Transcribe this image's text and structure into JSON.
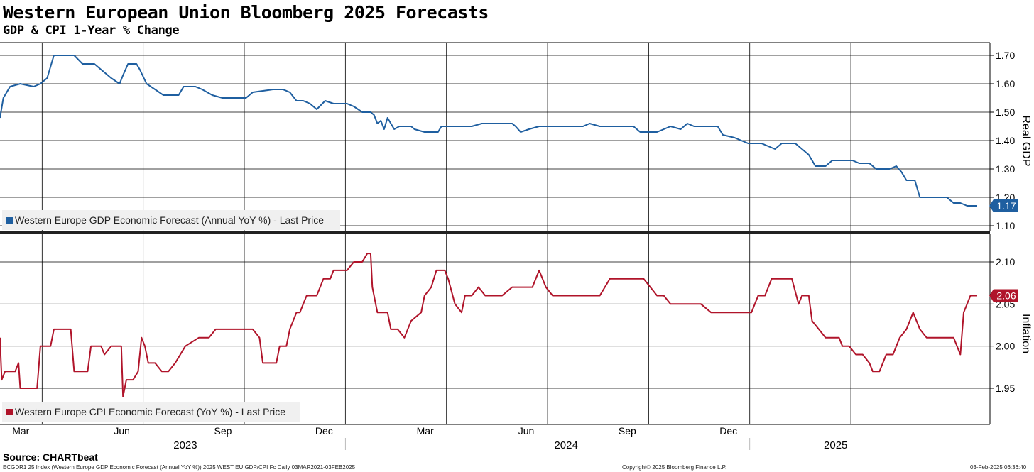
{
  "title": "Western European Union Bloomberg 2025 Forecasts",
  "subtitle": "GDP & CPI 1-Year % Change",
  "source": "Source: CHARTbeat",
  "footer": {
    "left": "ECGDR1 25 Index (Western Europe GDP Economic Forecast (Annual YoY %)) 2025 WEST EU GDP/CPI Fc  Daily 03MAR2021-03FEB2025",
    "center": "Copyright© 2025 Bloomberg Finance L.P.",
    "right": "03-Feb-2025 06:36:40"
  },
  "colors": {
    "gdp": "#1f5fa0",
    "cpi": "#b0142a",
    "grid": "#000000",
    "legend_bg": "#f0f0f0"
  },
  "chart_data": [
    {
      "type": "line",
      "ylabel": "Real GDP",
      "yticks": [
        "1.10",
        "1.20",
        "1.30",
        "1.40",
        "1.50",
        "1.60",
        "1.70"
      ],
      "ylim": [
        1.09,
        1.72
      ],
      "last_value": "1.17",
      "legend": "Western Europe GDP Economic Forecast (Annual YoY %) - Last Price",
      "series": [
        {
          "name": "Western Europe GDP Economic Forecast (Annual YoY %) - Last Price",
          "points": [
            [
              0,
              1.48
            ],
            [
              0.1,
              1.55
            ],
            [
              0.3,
              1.59
            ],
            [
              0.6,
              1.6
            ],
            [
              1.0,
              1.59
            ],
            [
              1.2,
              1.6
            ],
            [
              1.4,
              1.62
            ],
            [
              1.6,
              1.7
            ],
            [
              1.9,
              1.7
            ],
            [
              2.2,
              1.7
            ],
            [
              2.45,
              1.67
            ],
            [
              2.8,
              1.67
            ],
            [
              3.0,
              1.65
            ],
            [
              3.3,
              1.62
            ],
            [
              3.55,
              1.6
            ],
            [
              3.65,
              1.63
            ],
            [
              3.8,
              1.67
            ],
            [
              4.05,
              1.67
            ],
            [
              4.15,
              1.65
            ],
            [
              4.35,
              1.6
            ],
            [
              4.6,
              1.58
            ],
            [
              4.85,
              1.56
            ],
            [
              5.3,
              1.56
            ],
            [
              5.45,
              1.59
            ],
            [
              5.8,
              1.59
            ],
            [
              6.0,
              1.58
            ],
            [
              6.3,
              1.56
            ],
            [
              6.6,
              1.55
            ],
            [
              7.3,
              1.55
            ],
            [
              7.5,
              1.57
            ],
            [
              8.1,
              1.58
            ],
            [
              8.4,
              1.58
            ],
            [
              8.6,
              1.57
            ],
            [
              8.8,
              1.54
            ],
            [
              9.0,
              1.54
            ],
            [
              9.2,
              1.53
            ],
            [
              9.4,
              1.51
            ],
            [
              9.65,
              1.54
            ],
            [
              9.9,
              1.53
            ],
            [
              10.3,
              1.53
            ],
            [
              10.5,
              1.52
            ],
            [
              10.75,
              1.5
            ],
            [
              11.0,
              1.5
            ],
            [
              11.1,
              1.49
            ],
            [
              11.2,
              1.46
            ],
            [
              11.3,
              1.47
            ],
            [
              11.4,
              1.44
            ],
            [
              11.5,
              1.48
            ],
            [
              11.6,
              1.46
            ],
            [
              11.7,
              1.44
            ],
            [
              11.85,
              1.45
            ],
            [
              12.2,
              1.45
            ],
            [
              12.3,
              1.44
            ],
            [
              12.6,
              1.43
            ],
            [
              13.0,
              1.43
            ],
            [
              13.1,
              1.45
            ],
            [
              13.6,
              1.45
            ],
            [
              14.0,
              1.45
            ],
            [
              14.3,
              1.46
            ],
            [
              14.8,
              1.46
            ],
            [
              15.2,
              1.46
            ],
            [
              15.3,
              1.45
            ],
            [
              15.45,
              1.43
            ],
            [
              15.7,
              1.44
            ],
            [
              16.0,
              1.45
            ],
            [
              16.3,
              1.45
            ],
            [
              16.6,
              1.45
            ],
            [
              17.0,
              1.45
            ],
            [
              17.3,
              1.45
            ],
            [
              17.5,
              1.46
            ],
            [
              17.8,
              1.45
            ],
            [
              18.4,
              1.45
            ],
            [
              18.8,
              1.45
            ],
            [
              19.0,
              1.43
            ],
            [
              19.5,
              1.43
            ],
            [
              19.7,
              1.44
            ],
            [
              19.9,
              1.45
            ],
            [
              20.2,
              1.44
            ],
            [
              20.4,
              1.46
            ],
            [
              20.6,
              1.45
            ],
            [
              21.3,
              1.45
            ],
            [
              21.45,
              1.42
            ],
            [
              21.8,
              1.41
            ],
            [
              22.2,
              1.39
            ],
            [
              22.6,
              1.39
            ],
            [
              22.8,
              1.38
            ],
            [
              23.0,
              1.37
            ],
            [
              23.2,
              1.39
            ],
            [
              23.6,
              1.39
            ],
            [
              23.8,
              1.37
            ],
            [
              24.0,
              1.35
            ],
            [
              24.2,
              1.31
            ],
            [
              24.5,
              1.31
            ],
            [
              24.7,
              1.33
            ],
            [
              25.3,
              1.33
            ],
            [
              25.5,
              1.32
            ],
            [
              25.8,
              1.32
            ],
            [
              26.0,
              1.3
            ],
            [
              26.4,
              1.3
            ],
            [
              26.6,
              1.31
            ],
            [
              26.75,
              1.29
            ],
            [
              26.9,
              1.26
            ],
            [
              27.15,
              1.26
            ],
            [
              27.3,
              1.2
            ],
            [
              27.6,
              1.2
            ],
            [
              28.1,
              1.2
            ],
            [
              28.3,
              1.18
            ],
            [
              28.5,
              1.18
            ],
            [
              28.7,
              1.17
            ],
            [
              29.0,
              1.17
            ]
          ]
        }
      ]
    },
    {
      "type": "line",
      "ylabel": "Inflation",
      "yticks": [
        "1.95",
        "2.00",
        "2.05",
        "2.10"
      ],
      "ylim": [
        1.92,
        2.135
      ],
      "last_value": "2.06",
      "legend": "Western Europe CPI Economic Forecast (YoY %) - Last Price",
      "series": [
        {
          "name": "Western Europe CPI Economic Forecast (YoY %) - Last Price",
          "points": [
            [
              0,
              2.01
            ],
            [
              0.05,
              1.96
            ],
            [
              0.15,
              1.97
            ],
            [
              0.45,
              1.97
            ],
            [
              0.55,
              1.98
            ],
            [
              0.6,
              1.95
            ],
            [
              1.1,
              1.95
            ],
            [
              1.2,
              2.0
            ],
            [
              1.5,
              2.0
            ],
            [
              1.6,
              2.02
            ],
            [
              2.1,
              2.02
            ],
            [
              2.2,
              1.97
            ],
            [
              2.5,
              1.97
            ],
            [
              2.6,
              1.97
            ],
            [
              2.7,
              2.0
            ],
            [
              2.8,
              2.0
            ],
            [
              3.0,
              2.0
            ],
            [
              3.1,
              1.99
            ],
            [
              3.3,
              2.0
            ],
            [
              3.6,
              2.0
            ],
            [
              3.65,
              1.94
            ],
            [
              3.75,
              1.96
            ],
            [
              3.95,
              1.96
            ],
            [
              4.1,
              1.97
            ],
            [
              4.2,
              2.01
            ],
            [
              4.3,
              2.0
            ],
            [
              4.4,
              1.98
            ],
            [
              4.6,
              1.98
            ],
            [
              4.8,
              1.97
            ],
            [
              5.0,
              1.97
            ],
            [
              5.2,
              1.98
            ],
            [
              5.5,
              2.0
            ],
            [
              5.9,
              2.01
            ],
            [
              6.2,
              2.01
            ],
            [
              6.4,
              2.02
            ],
            [
              7.0,
              2.02
            ],
            [
              7.3,
              2.02
            ],
            [
              7.5,
              2.02
            ],
            [
              7.7,
              2.01
            ],
            [
              7.8,
              1.98
            ],
            [
              8.2,
              1.98
            ],
            [
              8.3,
              2.0
            ],
            [
              8.5,
              2.0
            ],
            [
              8.6,
              2.02
            ],
            [
              8.8,
              2.04
            ],
            [
              8.9,
              2.04
            ],
            [
              9.0,
              2.05
            ],
            [
              9.1,
              2.06
            ],
            [
              9.4,
              2.06
            ],
            [
              9.6,
              2.08
            ],
            [
              9.8,
              2.08
            ],
            [
              9.9,
              2.09
            ],
            [
              10.1,
              2.09
            ],
            [
              10.3,
              2.09
            ],
            [
              10.5,
              2.1
            ],
            [
              10.75,
              2.1
            ],
            [
              10.9,
              2.11
            ],
            [
              11.0,
              2.11
            ],
            [
              11.05,
              2.07
            ],
            [
              11.2,
              2.04
            ],
            [
              11.5,
              2.04
            ],
            [
              11.6,
              2.02
            ],
            [
              11.8,
              2.02
            ],
            [
              12.0,
              2.01
            ],
            [
              12.2,
              2.03
            ],
            [
              12.5,
              2.04
            ],
            [
              12.6,
              2.06
            ],
            [
              12.8,
              2.07
            ],
            [
              12.95,
              2.09
            ],
            [
              13.2,
              2.09
            ],
            [
              13.3,
              2.08
            ],
            [
              13.5,
              2.05
            ],
            [
              13.7,
              2.04
            ],
            [
              13.8,
              2.06
            ],
            [
              14.0,
              2.06
            ],
            [
              14.2,
              2.07
            ],
            [
              14.4,
              2.06
            ],
            [
              14.6,
              2.06
            ],
            [
              14.9,
              2.06
            ],
            [
              15.2,
              2.07
            ],
            [
              15.5,
              2.07
            ],
            [
              15.8,
              2.07
            ],
            [
              16.0,
              2.09
            ],
            [
              16.2,
              2.07
            ],
            [
              16.4,
              2.06
            ],
            [
              16.8,
              2.06
            ],
            [
              17.0,
              2.06
            ],
            [
              17.2,
              2.06
            ],
            [
              17.4,
              2.06
            ],
            [
              17.8,
              2.06
            ],
            [
              18.1,
              2.08
            ],
            [
              18.4,
              2.08
            ],
            [
              18.6,
              2.08
            ],
            [
              18.9,
              2.08
            ],
            [
              19.1,
              2.08
            ],
            [
              19.3,
              2.07
            ],
            [
              19.5,
              2.06
            ],
            [
              19.7,
              2.06
            ],
            [
              19.9,
              2.05
            ],
            [
              20.1,
              2.05
            ],
            [
              20.3,
              2.05
            ],
            [
              20.5,
              2.05
            ],
            [
              20.8,
              2.05
            ],
            [
              21.1,
              2.04
            ],
            [
              21.5,
              2.04
            ],
            [
              22.0,
              2.04
            ],
            [
              22.3,
              2.04
            ],
            [
              22.5,
              2.06
            ],
            [
              22.7,
              2.06
            ],
            [
              22.9,
              2.08
            ],
            [
              23.2,
              2.08
            ],
            [
              23.5,
              2.08
            ],
            [
              23.7,
              2.05
            ],
            [
              23.8,
              2.06
            ],
            [
              24.0,
              2.06
            ],
            [
              24.1,
              2.03
            ],
            [
              24.3,
              2.02
            ],
            [
              24.5,
              2.01
            ],
            [
              24.7,
              2.01
            ],
            [
              24.9,
              2.01
            ],
            [
              25.0,
              2.0
            ],
            [
              25.2,
              2.0
            ],
            [
              25.4,
              1.99
            ],
            [
              25.6,
              1.99
            ],
            [
              25.8,
              1.98
            ],
            [
              25.9,
              1.97
            ],
            [
              26.1,
              1.97
            ],
            [
              26.3,
              1.99
            ],
            [
              26.5,
              1.99
            ],
            [
              26.7,
              2.01
            ],
            [
              26.9,
              2.02
            ],
            [
              27.1,
              2.04
            ],
            [
              27.3,
              2.02
            ],
            [
              27.5,
              2.01
            ],
            [
              27.8,
              2.01
            ],
            [
              28.1,
              2.01
            ],
            [
              28.3,
              2.01
            ],
            [
              28.5,
              1.99
            ],
            [
              28.6,
              2.04
            ],
            [
              28.7,
              2.05
            ],
            [
              28.8,
              2.06
            ],
            [
              29.0,
              2.06
            ]
          ]
        }
      ]
    }
  ],
  "x_axis": {
    "month_ticks": [
      {
        "label": "Mar",
        "x": 1.25
      },
      {
        "label": "Jun",
        "x": 4.25
      },
      {
        "label": "Sep",
        "x": 7.25
      },
      {
        "label": "Dec",
        "x": 10.25
      },
      {
        "label": "Mar",
        "x": 13.25
      },
      {
        "label": "Jun",
        "x": 16.25
      },
      {
        "label": "Sep",
        "x": 19.25
      },
      {
        "label": "Dec",
        "x": 22.25
      },
      {
        "label": "",
        "x": 25.25
      }
    ],
    "year_labels": [
      {
        "label": "2023",
        "x": 5.5
      },
      {
        "label": "2024",
        "x": 16.8
      },
      {
        "label": "2025",
        "x": 24.8
      }
    ]
  }
}
